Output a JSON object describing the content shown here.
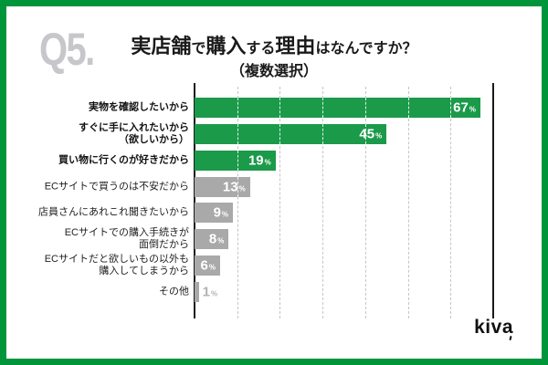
{
  "header": {
    "question_number": "Q5.",
    "title_segments": [
      {
        "text": "実店舗",
        "emphasis": true
      },
      {
        "text": "で",
        "emphasis": false
      },
      {
        "text": "購入",
        "emphasis": true
      },
      {
        "text": "する",
        "emphasis": false
      },
      {
        "text": "理由",
        "emphasis": true
      },
      {
        "text": "はなんですか？",
        "emphasis": false
      }
    ],
    "title_plain": "実店舗で購入する理由はなんですか？",
    "subtitle": "（複数選択）"
  },
  "footer": {
    "logo_text": "kiva"
  },
  "chart_data": {
    "type": "bar",
    "orientation": "horizontal",
    "title": "実店舗で購入する理由はなんですか？（複数選択）",
    "unit": "%",
    "xlim": [
      0,
      70
    ],
    "gridline_interval": 10,
    "grid": true,
    "categories": [
      "実物を確認したいから",
      "すぐに手に入れたいから\n（欲しいから）",
      "買い物に行くのが好きだから",
      "ECサイトで買うのは不安だから",
      "店員さんにあれこれ聞きたいから",
      "ECサイトでの購入手続きが\n面倒だから",
      "ECサイトだと欲しいもの以外も\n購入してしまうから",
      "その他"
    ],
    "values": [
      67,
      45,
      19,
      13,
      9,
      8,
      6,
      1
    ],
    "bar_colors": [
      "#1B9A4A",
      "#1B9A4A",
      "#1B9A4A",
      "#A9A9A9",
      "#A9A9A9",
      "#A9A9A9",
      "#A9A9A9",
      "#A9A9A9"
    ],
    "emphasized_rows": 3,
    "value_labels": [
      "67%",
      "45%",
      "19%",
      "13%",
      "9%",
      "8%",
      "6%",
      "1%"
    ],
    "legend": null
  },
  "colors": {
    "accent_green": "#1B9A4A",
    "muted_gray": "#A9A9A9",
    "frame_border": "#00953B",
    "question_number": "#C7C7CB",
    "axis_line": "#1A1A1A",
    "gridline": "#C5C5C5",
    "outside_value_label": "#B3B3B3"
  }
}
